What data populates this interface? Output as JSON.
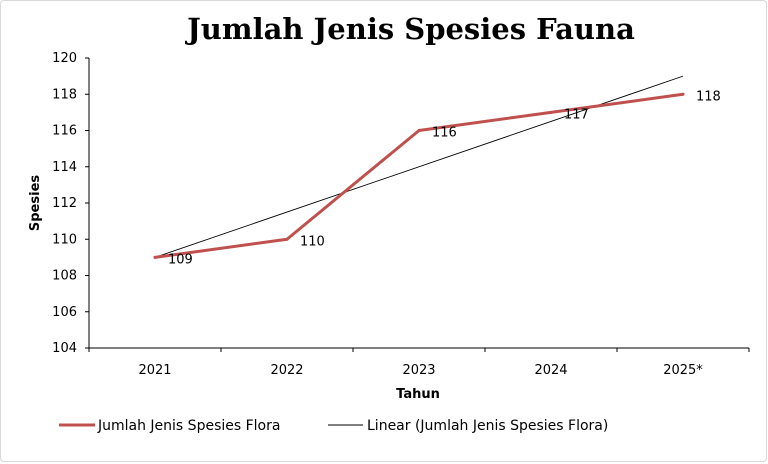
{
  "chart_data": {
    "type": "line",
    "title": "Jumlah Jenis Spesies Fauna",
    "xlabel": "Tahun",
    "ylabel": "Spesies",
    "categories": [
      "2021",
      "2022",
      "2023",
      "2024",
      "2025*"
    ],
    "ylim": [
      104,
      120
    ],
    "yticks": [
      104,
      106,
      108,
      110,
      112,
      114,
      116,
      118,
      120
    ],
    "grid": false,
    "legend_position": "bottom",
    "series": [
      {
        "name": "Jumlah Jenis Spesies Flora",
        "values": [
          109,
          110,
          116,
          117,
          118
        ],
        "data_labels": [
          "109",
          "110",
          "116",
          "117",
          "118"
        ],
        "color": "#c0504d"
      },
      {
        "name": "Linear (Jumlah Jenis Spesies Flora)",
        "type": "trendline",
        "values": [
          109,
          111.5,
          114,
          116.5,
          119
        ],
        "color": "#000000"
      }
    ]
  }
}
